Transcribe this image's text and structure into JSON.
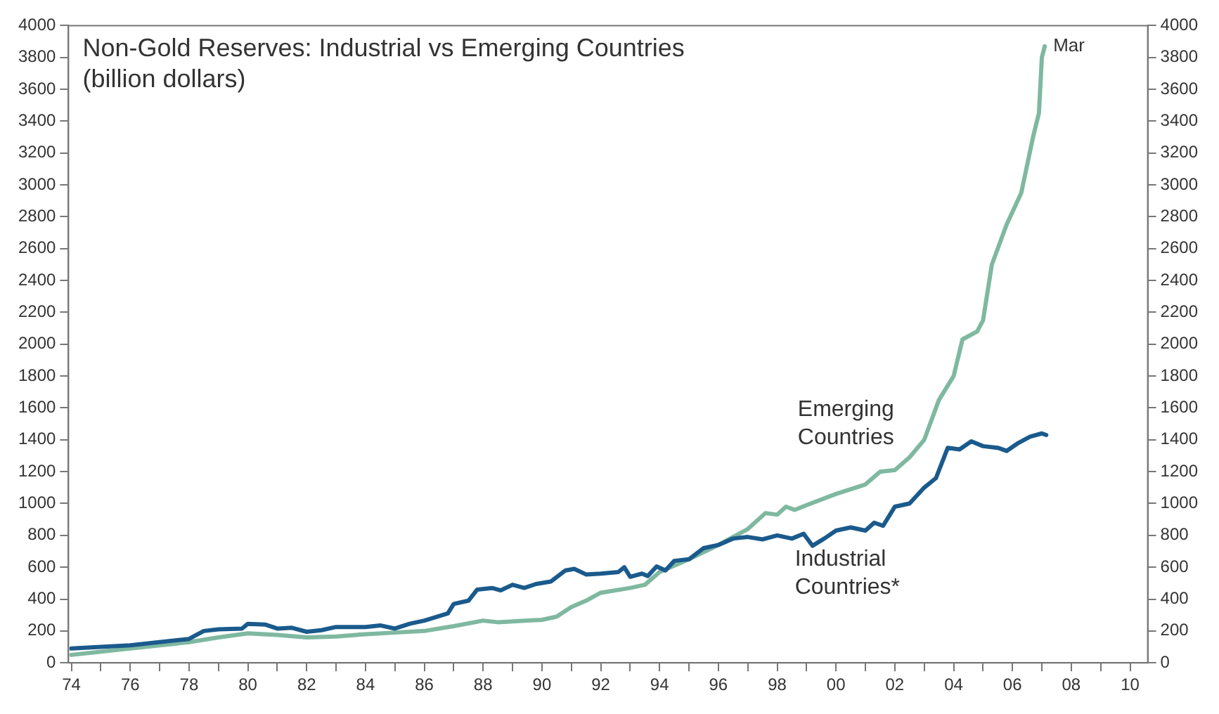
{
  "chart_data": {
    "type": "line",
    "title": "Non-Gold Reserves: Industrial vs Emerging Countries",
    "subtitle": "(billion dollars)",
    "xlim": [
      1973.9,
      2010.6
    ],
    "xticks": [
      {
        "value": 1974,
        "label": "74"
      },
      {
        "value": 1975,
        "label": null
      },
      {
        "value": 1976,
        "label": "76"
      },
      {
        "value": 1977,
        "label": null
      },
      {
        "value": 1978,
        "label": "78"
      },
      {
        "value": 1979,
        "label": null
      },
      {
        "value": 1980,
        "label": "80"
      },
      {
        "value": 1981,
        "label": null
      },
      {
        "value": 1982,
        "label": "82"
      },
      {
        "value": 1983,
        "label": null
      },
      {
        "value": 1984,
        "label": "84"
      },
      {
        "value": 1985,
        "label": null
      },
      {
        "value": 1986,
        "label": "86"
      },
      {
        "value": 1987,
        "label": null
      },
      {
        "value": 1988,
        "label": "88"
      },
      {
        "value": 1989,
        "label": null
      },
      {
        "value": 1990,
        "label": "90"
      },
      {
        "value": 1991,
        "label": null
      },
      {
        "value": 1992,
        "label": "92"
      },
      {
        "value": 1993,
        "label": null
      },
      {
        "value": 1994,
        "label": "94"
      },
      {
        "value": 1995,
        "label": null
      },
      {
        "value": 1996,
        "label": "96"
      },
      {
        "value": 1997,
        "label": null
      },
      {
        "value": 1998,
        "label": "98"
      },
      {
        "value": 1999,
        "label": null
      },
      {
        "value": 2000,
        "label": "00"
      },
      {
        "value": 2001,
        "label": null
      },
      {
        "value": 2002,
        "label": "02"
      },
      {
        "value": 2003,
        "label": null
      },
      {
        "value": 2004,
        "label": "04"
      },
      {
        "value": 2005,
        "label": null
      },
      {
        "value": 2006,
        "label": "06"
      },
      {
        "value": 2007,
        "label": null
      },
      {
        "value": 2008,
        "label": "08"
      },
      {
        "value": 2009,
        "label": null
      },
      {
        "value": 2010,
        "label": "10"
      }
    ],
    "ylim": [
      0,
      4000
    ],
    "yticks": [
      0,
      200,
      400,
      600,
      800,
      1000,
      1200,
      1400,
      1600,
      1800,
      2000,
      2200,
      2400,
      2600,
      2800,
      3000,
      3200,
      3400,
      3600,
      3800,
      4000
    ],
    "y2lim": [
      0,
      4000
    ],
    "y2ticks": [
      0,
      200,
      400,
      600,
      800,
      1000,
      1200,
      1400,
      1600,
      1800,
      2000,
      2200,
      2400,
      2600,
      2800,
      3000,
      3200,
      3400,
      3600,
      3800,
      4000
    ],
    "grid": false,
    "legend": false,
    "marker": "none",
    "line_style": "solid",
    "annotations": [
      {
        "text": "Mar",
        "x": 2007.1,
        "y": 3870
      }
    ],
    "series": [
      {
        "name": "Industrial Countries*",
        "color": "#1a5a8c",
        "x": [
          1974,
          1976,
          1978,
          1978.5,
          1979,
          1979.8,
          1980,
          1980.6,
          1981,
          1981.5,
          1982,
          1982.5,
          1983,
          1984,
          1984.5,
          1985,
          1985.5,
          1986,
          1986.8,
          1987,
          1987.5,
          1987.8,
          1988.3,
          1988.6,
          1989,
          1989.4,
          1989.8,
          1990.3,
          1990.8,
          1991.1,
          1991.5,
          1992,
          1992.6,
          1992.8,
          1993,
          1993.4,
          1993.6,
          1993.9,
          1994.2,
          1994.5,
          1995,
          1995.5,
          1996,
          1996.5,
          1997,
          1997.5,
          1998,
          1998.5,
          1998.9,
          1999.2,
          1999.6,
          2000,
          2000.5,
          2001,
          2001.3,
          2001.6,
          2002,
          2002.5,
          2003,
          2003.4,
          2003.8,
          2004.2,
          2004.6,
          2005,
          2005.5,
          2005.8,
          2006.2,
          2006.6,
          2007,
          2007.15
        ],
        "values": [
          90,
          110,
          150,
          200,
          210,
          215,
          245,
          240,
          215,
          220,
          195,
          205,
          225,
          225,
          235,
          215,
          245,
          265,
          310,
          370,
          390,
          460,
          470,
          455,
          490,
          470,
          495,
          510,
          580,
          590,
          555,
          560,
          570,
          600,
          540,
          560,
          545,
          605,
          580,
          640,
          650,
          720,
          740,
          780,
          790,
          775,
          800,
          780,
          810,
          735,
          780,
          830,
          850,
          830,
          880,
          860,
          980,
          1000,
          1100,
          1160,
          1350,
          1340,
          1390,
          1360,
          1350,
          1330,
          1380,
          1420,
          1440,
          1430
        ]
      },
      {
        "name": "Emerging Countries",
        "color": "#7fb8a0",
        "x": [
          1974,
          1976,
          1978,
          1979,
          1980,
          1981,
          1982,
          1983,
          1984,
          1985,
          1986,
          1987,
          1988,
          1988.5,
          1989,
          1990,
          1990.5,
          1991,
          1991.5,
          1992,
          1993,
          1993.5,
          1994,
          1995,
          1996,
          1997,
          1997.6,
          1998,
          1998.3,
          1998.6,
          1999,
          2000,
          2001,
          2001.5,
          2002,
          2002.5,
          2003,
          2003.5,
          2004,
          2004.3,
          2004.8,
          2005,
          2005.3,
          2005.8,
          2006.3,
          2006.7,
          2006.9,
          2007,
          2007.1
        ],
        "values": [
          50,
          90,
          130,
          160,
          185,
          175,
          160,
          165,
          180,
          190,
          200,
          230,
          265,
          255,
          260,
          270,
          290,
          350,
          390,
          440,
          470,
          490,
          570,
          650,
          740,
          840,
          940,
          930,
          980,
          960,
          990,
          1060,
          1120,
          1200,
          1210,
          1290,
          1400,
          1650,
          1800,
          2030,
          2080,
          2150,
          2500,
          2750,
          2950,
          3300,
          3450,
          3800,
          3870
        ]
      }
    ]
  }
}
